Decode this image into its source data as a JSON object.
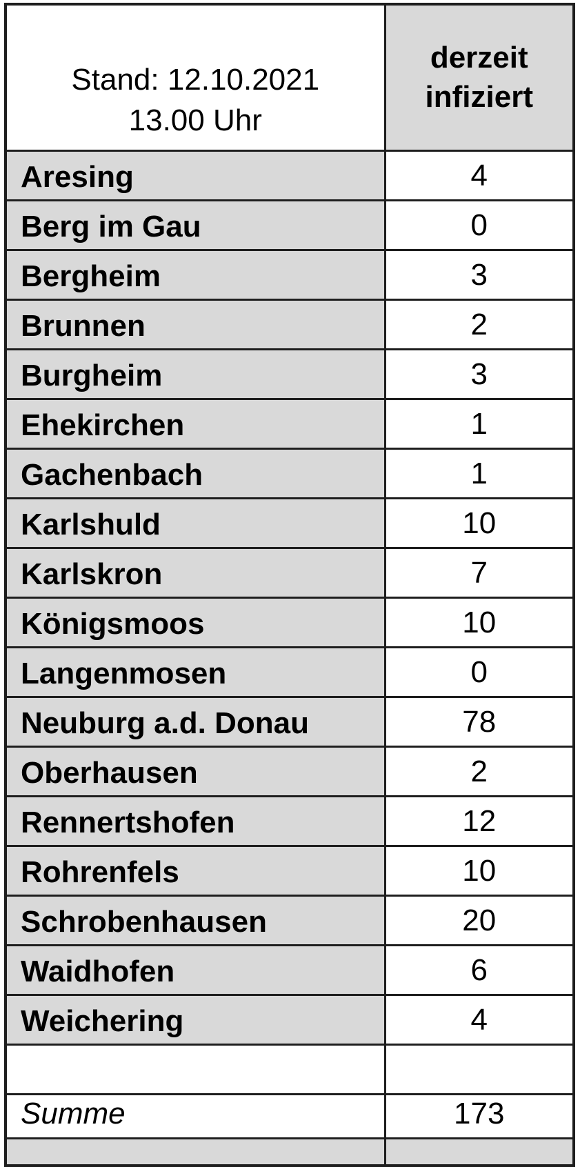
{
  "header": {
    "date_line1": "Stand: 12.10.2021",
    "date_line2": "13.00 Uhr",
    "value_column_label": "derzeit infiziert"
  },
  "rows": [
    {
      "name": "Aresing",
      "value": "4"
    },
    {
      "name": "Berg im Gau",
      "value": "0"
    },
    {
      "name": "Bergheim",
      "value": "3"
    },
    {
      "name": "Brunnen",
      "value": "2"
    },
    {
      "name": "Burgheim",
      "value": "3"
    },
    {
      "name": "Ehekirchen",
      "value": "1"
    },
    {
      "name": "Gachenbach",
      "value": "1"
    },
    {
      "name": "Karlshuld",
      "value": "10"
    },
    {
      "name": "Karlskron",
      "value": "7"
    },
    {
      "name": "Königsmoos",
      "value": "10"
    },
    {
      "name": "Langenmosen",
      "value": "0"
    },
    {
      "name": "Neuburg a.d. Donau",
      "value": "78"
    },
    {
      "name": "Oberhausen",
      "value": "2"
    },
    {
      "name": "Rennertshofen",
      "value": "12"
    },
    {
      "name": "Rohrenfels",
      "value": "10"
    },
    {
      "name": "Schrobenhausen",
      "value": "20"
    },
    {
      "name": "Waidhofen",
      "value": "6"
    },
    {
      "name": "Weichering",
      "value": "4"
    }
  ],
  "summary": {
    "label": "Summe",
    "value": "173"
  },
  "colors": {
    "cell_gray": "#d9d9d9",
    "border": "#1e1e1e",
    "text": "#000000"
  }
}
